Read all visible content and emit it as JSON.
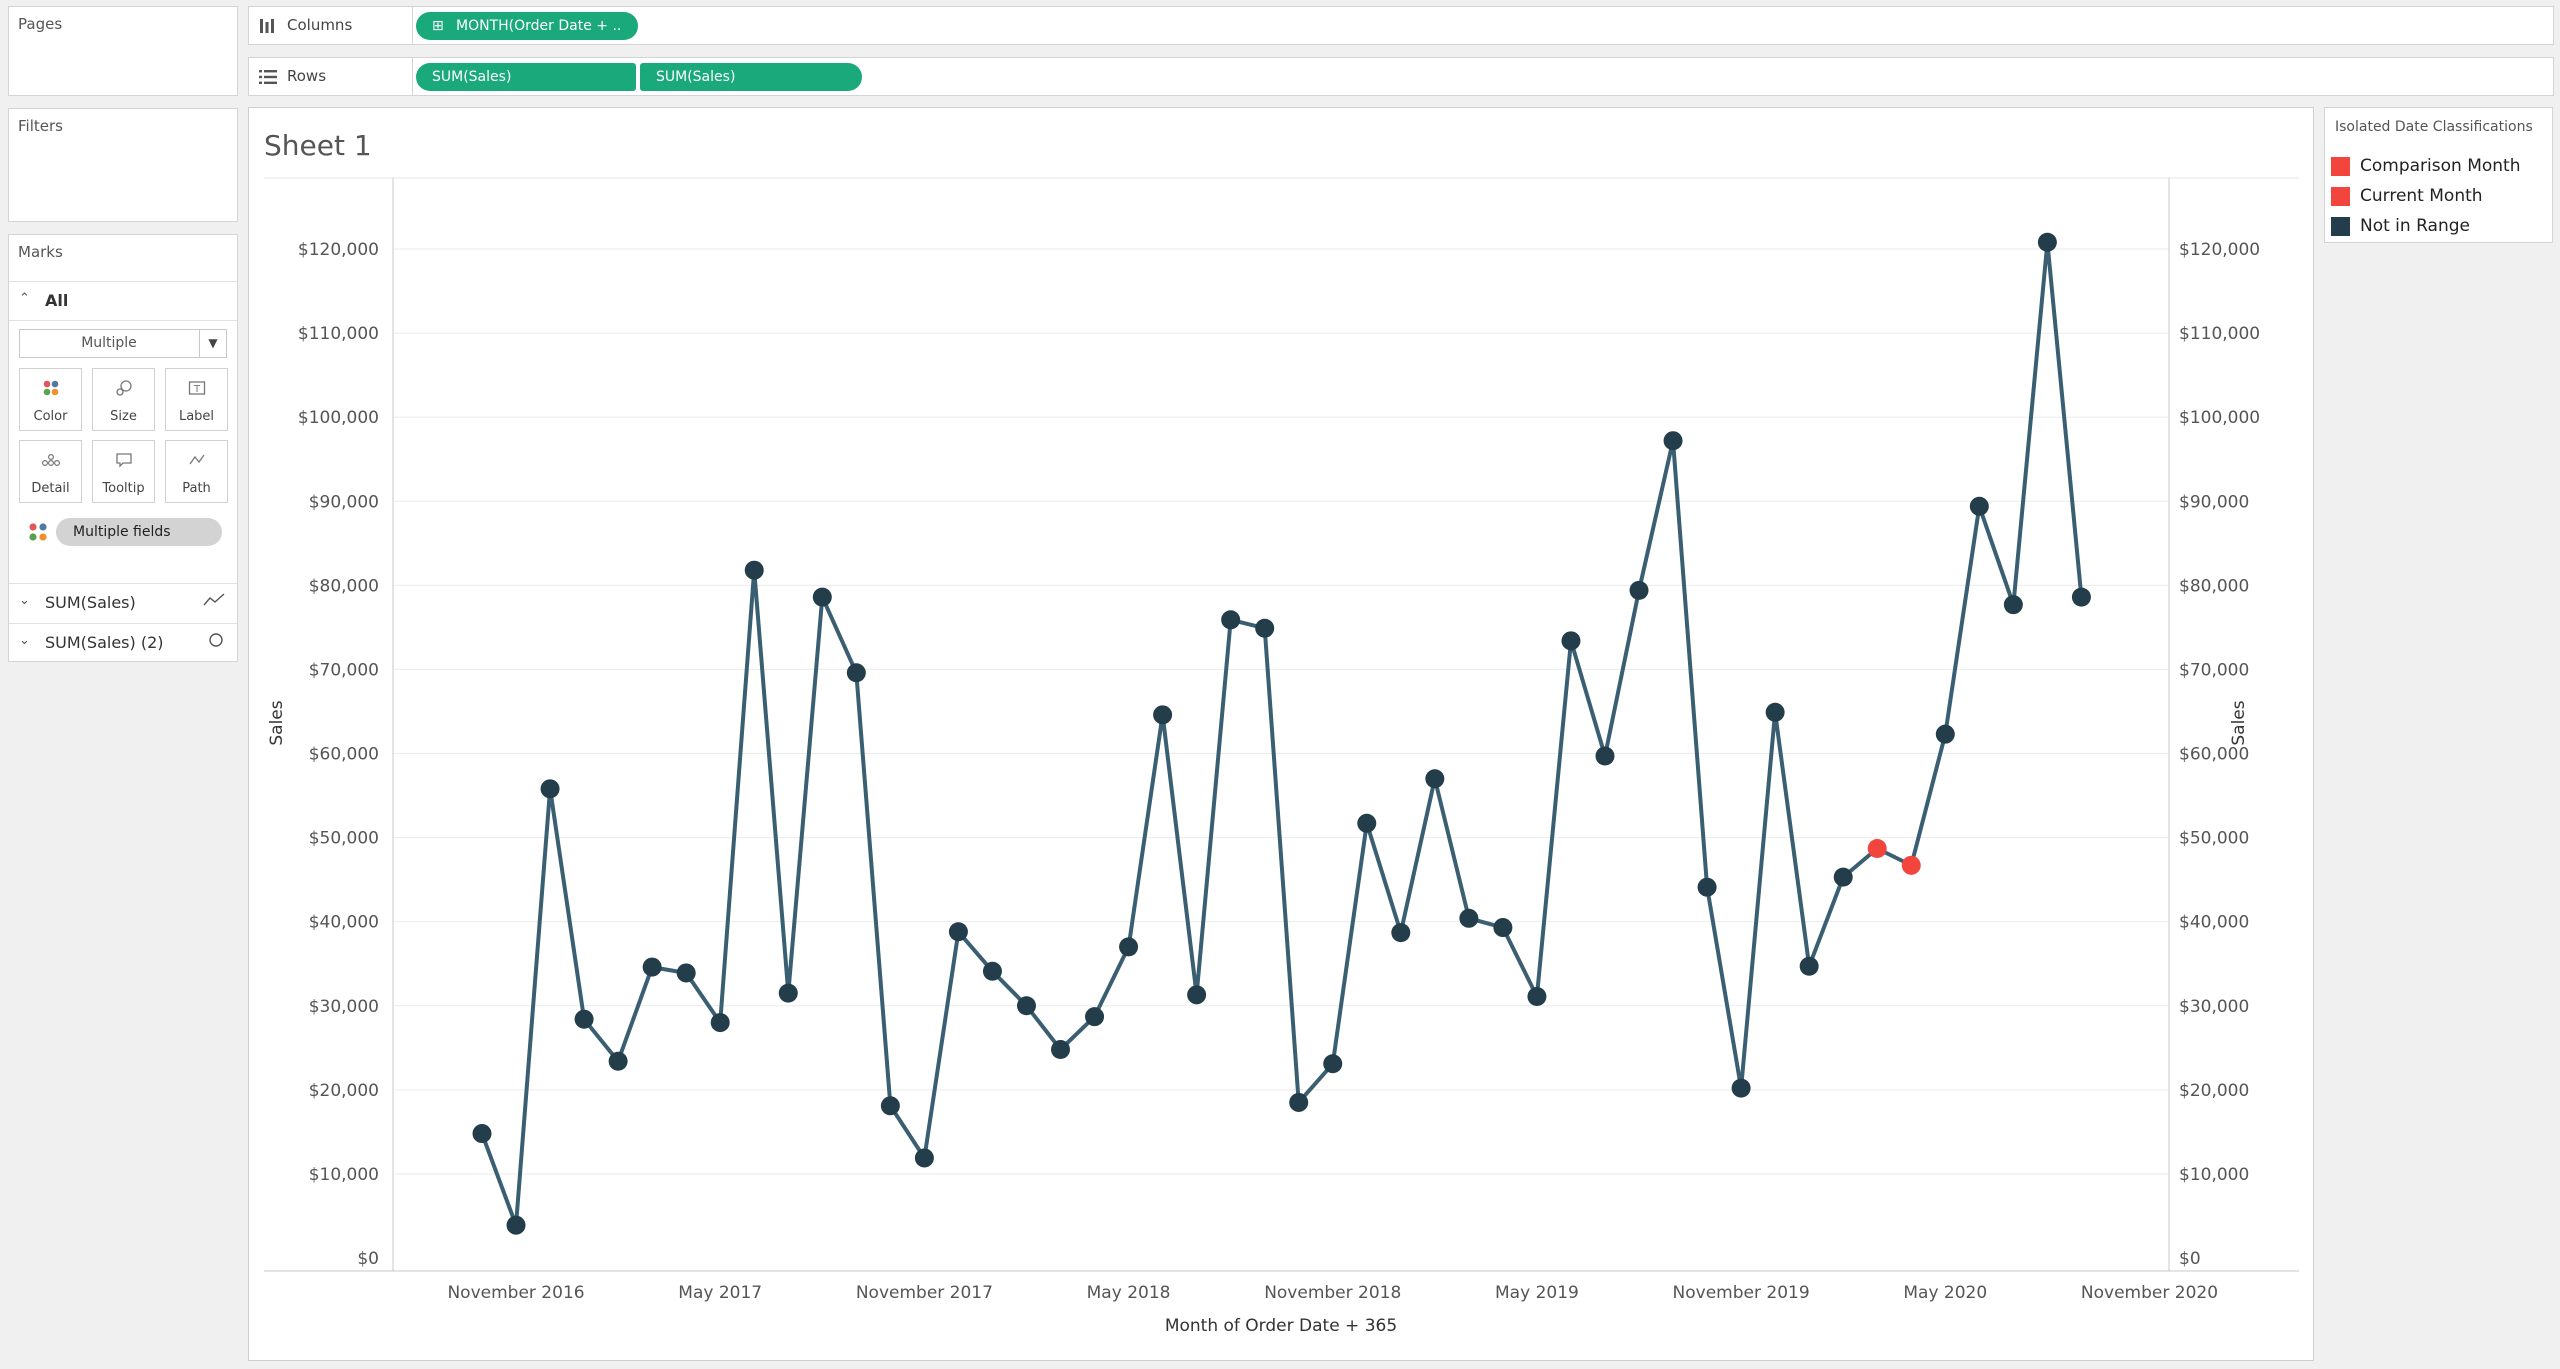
{
  "pages": {
    "title": "Pages"
  },
  "filters": {
    "title": "Filters"
  },
  "marks": {
    "title": "Marks",
    "all_label": "All",
    "mark_type": "Multiple",
    "buttons": [
      "Color",
      "Size",
      "Label",
      "Detail",
      "Tooltip",
      "Path"
    ],
    "multiple_fields": "Multiple fields",
    "measures": [
      "SUM(Sales)",
      "SUM(Sales) (2)"
    ]
  },
  "columns": {
    "label": "Columns",
    "pill": "MONTH(Order Date + .."
  },
  "rows": {
    "label": "Rows",
    "pills": [
      "SUM(Sales)",
      "SUM(Sales)"
    ]
  },
  "sheet": {
    "title": "Sheet 1"
  },
  "legend": {
    "title": "Isolated Date Classifications",
    "items": [
      {
        "label": "Comparison Month",
        "color": "#f2453d"
      },
      {
        "label": "Current Month",
        "color": "#f2453d"
      },
      {
        "label": "Not in Range",
        "color": "#233d4a"
      }
    ]
  },
  "chart_data": {
    "type": "line",
    "xlabel": "Month of Order Date + 365",
    "ylabel": "Sales",
    "ylabel_right": "Sales",
    "ylim": [
      0,
      120000
    ],
    "y_ticks": [
      "$0",
      "$10,000",
      "$20,000",
      "$30,000",
      "$40,000",
      "$50,000",
      "$60,000",
      "$70,000",
      "$80,000",
      "$90,000",
      "$100,000",
      "$110,000",
      "$120,000"
    ],
    "x_ticks": [
      "November 2016",
      "May 2017",
      "November 2017",
      "May 2018",
      "November 2018",
      "May 2019",
      "November 2019",
      "May 2020",
      "November 2020"
    ],
    "x_start": "2016-10",
    "line_color": "#3b5f72",
    "point_color": "#233d4a",
    "highlight_color": "#f2453d",
    "points": [
      {
        "month": "2016-10",
        "value": 14800
      },
      {
        "month": "2016-11",
        "value": 3900
      },
      {
        "month": "2016-12",
        "value": 55800
      },
      {
        "month": "2017-01",
        "value": 28400
      },
      {
        "month": "2017-02",
        "value": 23400
      },
      {
        "month": "2017-03",
        "value": 34600
      },
      {
        "month": "2017-04",
        "value": 33900
      },
      {
        "month": "2017-05",
        "value": 28000
      },
      {
        "month": "2017-06",
        "value": 81800
      },
      {
        "month": "2017-07",
        "value": 31500
      },
      {
        "month": "2017-08",
        "value": 78600
      },
      {
        "month": "2017-09",
        "value": 69600
      },
      {
        "month": "2017-10",
        "value": 18100
      },
      {
        "month": "2017-11",
        "value": 11900
      },
      {
        "month": "2017-12",
        "value": 38800
      },
      {
        "month": "2018-01",
        "value": 34100
      },
      {
        "month": "2018-02",
        "value": 30000
      },
      {
        "month": "2018-03",
        "value": 24800
      },
      {
        "month": "2018-04",
        "value": 28700
      },
      {
        "month": "2018-05",
        "value": 37000
      },
      {
        "month": "2018-06",
        "value": 64600
      },
      {
        "month": "2018-07",
        "value": 31300
      },
      {
        "month": "2018-08",
        "value": 75900
      },
      {
        "month": "2018-09",
        "value": 74900
      },
      {
        "month": "2018-10",
        "value": 18500
      },
      {
        "month": "2018-11",
        "value": 23100
      },
      {
        "month": "2018-12",
        "value": 51700
      },
      {
        "month": "2019-01",
        "value": 38700
      },
      {
        "month": "2019-02",
        "value": 57000
      },
      {
        "month": "2019-03",
        "value": 40400
      },
      {
        "month": "2019-04",
        "value": 39300
      },
      {
        "month": "2019-05",
        "value": 31100
      },
      {
        "month": "2019-06",
        "value": 73400
      },
      {
        "month": "2019-07",
        "value": 59700
      },
      {
        "month": "2019-08",
        "value": 79400
      },
      {
        "month": "2019-09",
        "value": 97200
      },
      {
        "month": "2019-10",
        "value": 44100
      },
      {
        "month": "2019-11",
        "value": 20200
      },
      {
        "month": "2019-12",
        "value": 64900
      },
      {
        "month": "2020-01",
        "value": 34700
      },
      {
        "month": "2020-02",
        "value": 45300
      },
      {
        "month": "2020-03",
        "value": 48700,
        "class": "Comparison Month"
      },
      {
        "month": "2020-04",
        "value": 46700,
        "class": "Current Month"
      },
      {
        "month": "2020-05",
        "value": 62300
      },
      {
        "month": "2020-06",
        "value": 89400
      },
      {
        "month": "2020-07",
        "value": 77700
      },
      {
        "month": "2020-08",
        "value": 120800
      },
      {
        "month": "2020-09",
        "value": 78600
      }
    ]
  }
}
